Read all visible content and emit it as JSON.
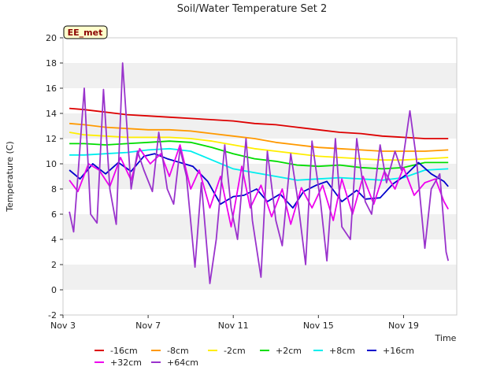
{
  "chart_data": {
    "type": "line",
    "title": "Soil/Water Temperature Set 2",
    "xlabel": "Time",
    "ylabel": "Temperature (C)",
    "badge": "EE_met",
    "ylim": [
      -2,
      20
    ],
    "xlim": [
      3,
      21.5
    ],
    "yticks": [
      -2,
      0,
      2,
      4,
      6,
      8,
      10,
      12,
      14,
      16,
      18,
      20
    ],
    "xticks": [
      {
        "x": 3,
        "label": "Nov 3"
      },
      {
        "x": 7,
        "label": "Nov 7"
      },
      {
        "x": 11,
        "label": "Nov 11"
      },
      {
        "x": 15,
        "label": "Nov 15"
      },
      {
        "x": 19,
        "label": "Nov 19"
      }
    ],
    "grid": "horizontal bands",
    "legend_position": "bottom",
    "series": [
      {
        "name": "-16cm",
        "color": "#dd0000",
        "x": [
          3.3,
          4,
          5,
          6,
          7,
          8,
          9,
          10,
          11,
          12,
          13,
          14,
          15,
          16,
          17,
          18,
          19,
          20,
          21.1
        ],
        "y": [
          14.4,
          14.3,
          14.1,
          13.9,
          13.8,
          13.7,
          13.6,
          13.5,
          13.4,
          13.2,
          13.1,
          12.9,
          12.7,
          12.5,
          12.4,
          12.2,
          12.1,
          12.0,
          12.0
        ]
      },
      {
        "name": "-8cm",
        "color": "#ff9900",
        "x": [
          3.3,
          4,
          5,
          6,
          7,
          8,
          9,
          10,
          11,
          12,
          13,
          14,
          15,
          16,
          17,
          18,
          19,
          20,
          21.1
        ],
        "y": [
          13.2,
          13.1,
          12.9,
          12.8,
          12.7,
          12.7,
          12.6,
          12.4,
          12.2,
          12.0,
          11.7,
          11.5,
          11.3,
          11.2,
          11.1,
          11.0,
          11.0,
          11.0,
          11.1
        ]
      },
      {
        "name": "-2cm",
        "color": "#ffee00",
        "x": [
          3.3,
          4,
          5,
          6,
          7,
          8,
          9,
          10,
          11,
          12,
          13,
          14,
          15,
          16,
          17,
          18,
          19,
          20,
          21.1
        ],
        "y": [
          12.5,
          12.3,
          12.2,
          12.1,
          12.1,
          12.1,
          12.0,
          11.8,
          11.5,
          11.2,
          11.0,
          10.8,
          10.6,
          10.5,
          10.4,
          10.3,
          10.3,
          10.4,
          10.5
        ]
      },
      {
        "name": "+2cm",
        "color": "#00dd00",
        "x": [
          3.3,
          4,
          5,
          6,
          7,
          8,
          9,
          10,
          11,
          12,
          13,
          14,
          15,
          16,
          17,
          18,
          19,
          20,
          21.1
        ],
        "y": [
          11.6,
          11.6,
          11.5,
          11.6,
          11.7,
          11.8,
          11.7,
          11.3,
          10.8,
          10.4,
          10.2,
          9.9,
          9.8,
          9.9,
          9.7,
          9.6,
          9.7,
          10.1,
          10.1
        ]
      },
      {
        "name": "+8cm",
        "color": "#00eeee",
        "x": [
          3.3,
          4,
          5,
          6,
          7,
          8,
          9,
          10,
          11,
          12,
          13,
          14,
          15,
          16,
          17,
          18,
          19,
          20,
          21.1
        ],
        "y": [
          10.7,
          10.7,
          10.8,
          10.9,
          11.1,
          11.2,
          11.0,
          10.3,
          9.6,
          9.3,
          9.0,
          8.7,
          8.8,
          8.9,
          8.8,
          8.7,
          8.9,
          9.5,
          9.6
        ]
      },
      {
        "name": "+16cm",
        "color": "#0000cc",
        "x": [
          3.3,
          3.8,
          4.4,
          5,
          5.6,
          6.2,
          6.8,
          7.3,
          7.9,
          8.5,
          9.1,
          9.8,
          10.4,
          11.0,
          11.5,
          12.1,
          12.6,
          13.2,
          13.8,
          14.3,
          14.9,
          15.4,
          16.1,
          16.8,
          17.2,
          17.9,
          18.5,
          19.1,
          19.7,
          20.3,
          20.9,
          21.1
        ],
        "y": [
          9.5,
          8.8,
          10.0,
          9.2,
          10.1,
          9.4,
          10.6,
          10.8,
          10.4,
          10.1,
          9.8,
          8.6,
          6.8,
          7.4,
          7.5,
          8.0,
          7.0,
          7.6,
          6.5,
          7.8,
          8.3,
          8.6,
          7.0,
          7.9,
          7.2,
          7.3,
          8.4,
          9.1,
          10.1,
          9.2,
          8.6,
          8.2
        ]
      },
      {
        "name": "+32cm",
        "color": "#ee00ee",
        "x": [
          3.3,
          3.7,
          4.2,
          4.7,
          5.2,
          5.7,
          6.2,
          6.6,
          7.1,
          7.6,
          8.0,
          8.5,
          9.0,
          9.4,
          9.9,
          10.4,
          10.9,
          11.4,
          11.8,
          12.3,
          12.8,
          13.3,
          13.7,
          14.2,
          14.7,
          15.2,
          15.7,
          16.1,
          16.6,
          17.1,
          17.6,
          18.1,
          18.6,
          19.0,
          19.5,
          20.0,
          20.5,
          20.9,
          21.1
        ],
        "y": [
          8.7,
          7.8,
          10.0,
          9.5,
          8.2,
          10.5,
          8.7,
          11.2,
          10.0,
          10.8,
          9.0,
          11.5,
          8.0,
          9.5,
          6.5,
          9.0,
          5.0,
          9.8,
          6.5,
          8.3,
          5.8,
          8.0,
          5.2,
          8.1,
          6.5,
          8.3,
          5.5,
          8.8,
          6.0,
          9.0,
          6.8,
          9.4,
          8.0,
          9.7,
          7.5,
          8.5,
          8.8,
          7.0,
          6.4
        ]
      },
      {
        "name": "+64cm",
        "color": "#9933cc",
        "x": [
          3.3,
          3.5,
          3.7,
          4.0,
          4.3,
          4.6,
          4.9,
          5.2,
          5.5,
          5.8,
          6.2,
          6.5,
          6.8,
          7.2,
          7.5,
          7.9,
          8.2,
          8.5,
          8.8,
          9.2,
          9.5,
          9.9,
          10.2,
          10.6,
          10.9,
          11.2,
          11.6,
          11.9,
          12.3,
          12.6,
          13.0,
          13.3,
          13.7,
          14.0,
          14.4,
          14.7,
          15.1,
          15.4,
          15.8,
          16.1,
          16.5,
          16.8,
          17.2,
          17.5,
          17.9,
          18.2,
          18.6,
          18.9,
          19.3,
          19.6,
          20.0,
          20.3,
          20.7,
          21.0,
          21.1
        ],
        "y": [
          6.2,
          4.6,
          9.0,
          16.0,
          6.0,
          5.3,
          15.9,
          8.0,
          5.2,
          18.0,
          8.0,
          11.0,
          9.5,
          7.8,
          12.5,
          8.0,
          6.8,
          11.2,
          9.0,
          1.8,
          8.5,
          0.5,
          4.0,
          11.5,
          6.5,
          4.0,
          12.0,
          5.5,
          1.0,
          11.0,
          5.5,
          3.5,
          10.8,
          7.5,
          2.0,
          11.8,
          7.0,
          2.3,
          12.0,
          5.0,
          4.0,
          12.0,
          7.0,
          6.0,
          11.5,
          8.5,
          11.0,
          9.5,
          14.2,
          10.5,
          3.3,
          8.0,
          9.2,
          3.0,
          2.3
        ]
      }
    ]
  }
}
